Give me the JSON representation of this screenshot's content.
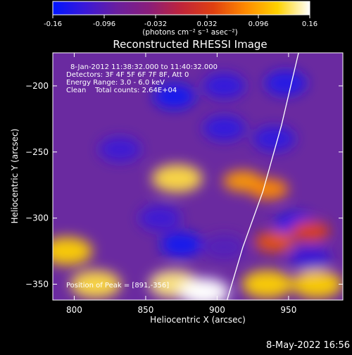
{
  "colorbar": {
    "ticks": [
      "-0.16",
      "-0.096",
      "-0.032",
      "0.032",
      "0.096",
      "0.16"
    ],
    "tick_values": [
      -0.16,
      -0.096,
      -0.032,
      0.032,
      0.096,
      0.16
    ],
    "units_label": "(photons cm⁻² s⁻¹ asec⁻²)",
    "stops": [
      "#0016ff",
      "#3a18d8",
      "#6a1f9e",
      "#8a1e7a",
      "#c0243a",
      "#e04010",
      "#ff8a00",
      "#ffd200",
      "#ffffff"
    ]
  },
  "chart_data": {
    "type": "heatmap",
    "title": "Reconstructed RHESSI Image",
    "xlabel": "Heliocentric X (arcsec)",
    "ylabel": "Heliocentric Y (arcsec)",
    "xlim": [
      785,
      988
    ],
    "ylim": [
      -362,
      -175
    ],
    "xticks": [
      800,
      850,
      900,
      950
    ],
    "yticks": [
      -200,
      -250,
      -300,
      -350
    ],
    "xtick_labels": [
      "800",
      "850",
      "900",
      "950"
    ],
    "ytick_labels": [
      "−200",
      "−250",
      "−300",
      "−350"
    ],
    "annotations": [
      "8-Jan-2012 11:38:32.000 to 11:40:32.000",
      "Detectors: 3F 4F 5F 6F 7F 8F, Att 0",
      "Energy Range: 3.0 - 6.0 keV",
      "Clean    Total counts: 2.64E+04"
    ],
    "peak_label": "Position of Peak = [891,-356]",
    "peak": [
      891,
      -356
    ],
    "bright_regions": [
      {
        "x": 872,
        "y": -270,
        "level": 0.13
      },
      {
        "x": 918,
        "y": -272,
        "level": 0.09
      },
      {
        "x": 936,
        "y": -278,
        "level": 0.08
      },
      {
        "x": 795,
        "y": -325,
        "level": 0.12
      },
      {
        "x": 815,
        "y": -350,
        "level": 0.13
      },
      {
        "x": 870,
        "y": -350,
        "level": 0.14
      },
      {
        "x": 891,
        "y": -356,
        "level": 0.16
      },
      {
        "x": 935,
        "y": -350,
        "level": 0.12
      },
      {
        "x": 970,
        "y": -350,
        "level": 0.12
      },
      {
        "x": 940,
        "y": -318,
        "level": 0.05
      },
      {
        "x": 965,
        "y": -310,
        "level": 0.04
      }
    ],
    "dark_regions": [
      {
        "x": 870,
        "y": -208,
        "level": -0.15
      },
      {
        "x": 905,
        "y": -200,
        "level": -0.13
      },
      {
        "x": 948,
        "y": -198,
        "level": -0.14
      },
      {
        "x": 905,
        "y": -232,
        "level": -0.13
      },
      {
        "x": 940,
        "y": -240,
        "level": -0.13
      },
      {
        "x": 832,
        "y": -248,
        "level": -0.12
      },
      {
        "x": 860,
        "y": -300,
        "level": -0.12
      },
      {
        "x": 875,
        "y": -320,
        "level": -0.15
      },
      {
        "x": 955,
        "y": -305,
        "level": -0.14
      },
      {
        "x": 965,
        "y": -330,
        "level": -0.12
      },
      {
        "x": 905,
        "y": -322,
        "level": -0.1
      }
    ],
    "limb_curve": [
      {
        "x": 957,
        "y": -175
      },
      {
        "x": 945,
        "y": -230
      },
      {
        "x": 932,
        "y": -280
      },
      {
        "x": 918,
        "y": -322
      },
      {
        "x": 907,
        "y": -362
      }
    ]
  },
  "footer": {
    "timestamp": "8-May-2022 16:56"
  }
}
